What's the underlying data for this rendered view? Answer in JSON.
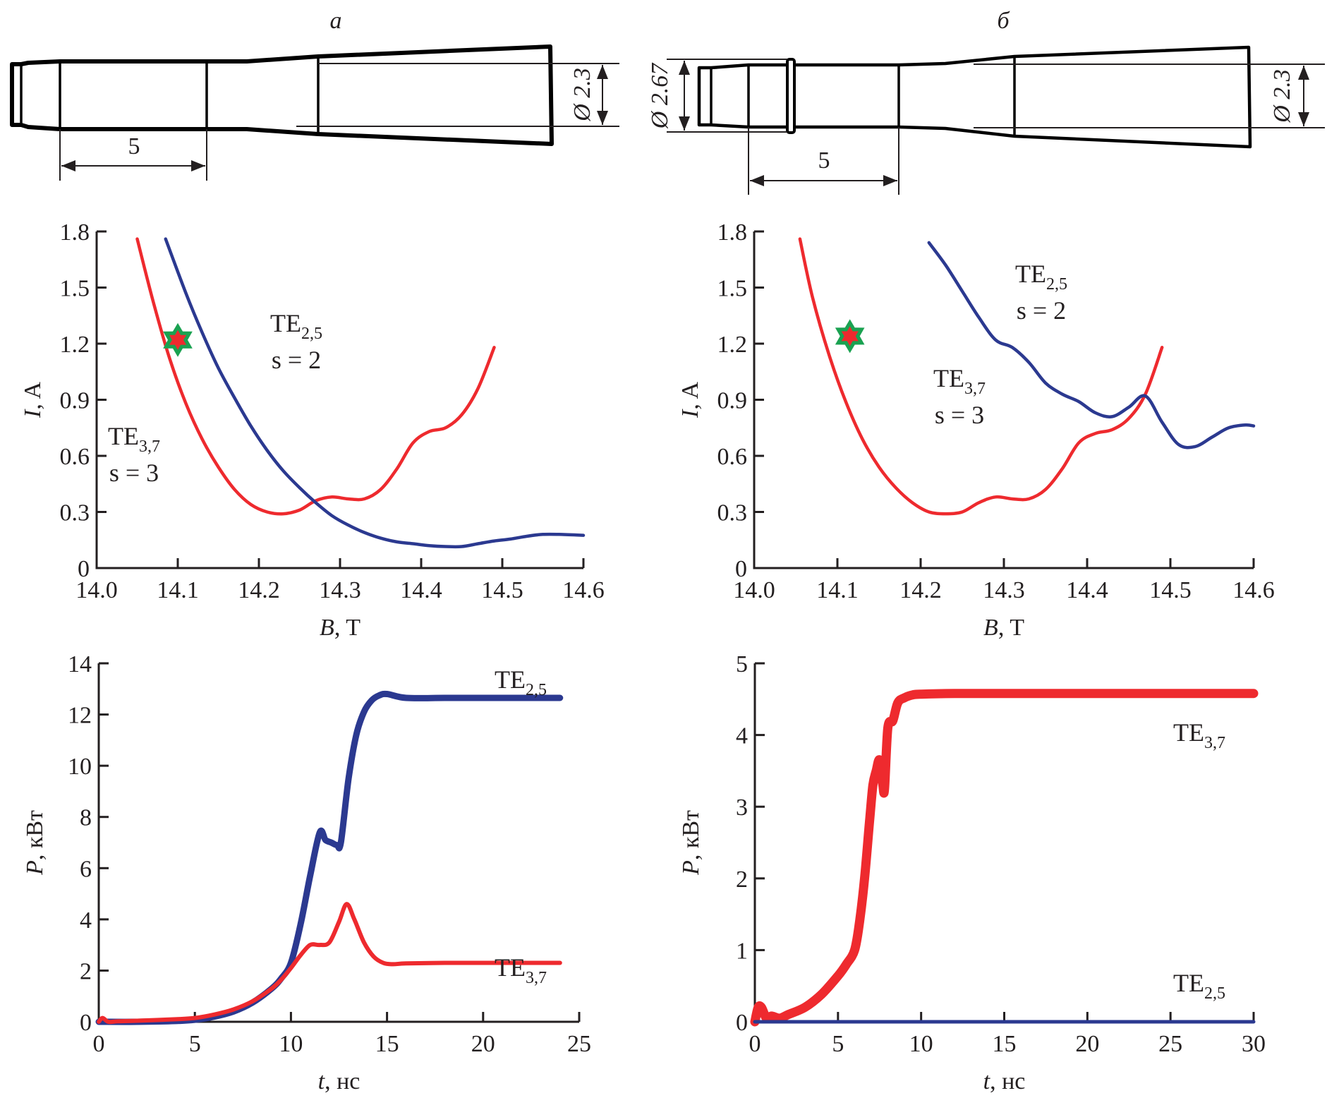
{
  "panels": {
    "a": {
      "label": "a"
    },
    "b": {
      "label": "б"
    }
  },
  "diagrams": {
    "a": {
      "dim_diameter": "Ø 2.3",
      "dim_length": "5"
    },
    "b": {
      "dim_diameter_left": "Ø 2.67",
      "dim_diameter_right": "Ø 2.3",
      "dim_length": "5"
    }
  },
  "colors": {
    "red": "#ee2a2e",
    "blue": "#2b3990",
    "star_outer": "#1aa251",
    "star_inner": "#ee2a2e"
  },
  "chart_data": [
    {
      "id": "a-start",
      "type": "line",
      "title": "",
      "xlabel": "B, T",
      "ylabel": "I, A",
      "xlim": [
        14.0,
        14.6
      ],
      "ylim": [
        0,
        1.8
      ],
      "xticks": [
        "14.0",
        "14.1",
        "14.2",
        "14.3",
        "14.4",
        "14.5",
        "14.6"
      ],
      "yticks": [
        "0",
        "0.3",
        "0.6",
        "0.9",
        "1.2",
        "1.5",
        "1.8"
      ],
      "series": [
        {
          "name": "TE3,7 s=3",
          "color": "red",
          "x": [
            14.05,
            14.07,
            14.09,
            14.11,
            14.13,
            14.15,
            14.17,
            14.19,
            14.21,
            14.23,
            14.25,
            14.27,
            14.29,
            14.31,
            14.33,
            14.35,
            14.37,
            14.39,
            14.41,
            14.43,
            14.45,
            14.47,
            14.49
          ],
          "y": [
            1.76,
            1.42,
            1.12,
            0.88,
            0.69,
            0.54,
            0.42,
            0.34,
            0.3,
            0.29,
            0.31,
            0.36,
            0.38,
            0.37,
            0.37,
            0.42,
            0.53,
            0.67,
            0.73,
            0.75,
            0.82,
            0.96,
            1.18
          ]
        },
        {
          "name": "TE2,5 s=2",
          "color": "blue",
          "x": [
            14.085,
            14.11,
            14.13,
            14.15,
            14.17,
            14.19,
            14.21,
            14.23,
            14.25,
            14.27,
            14.29,
            14.31,
            14.33,
            14.35,
            14.37,
            14.39,
            14.41,
            14.43,
            14.45,
            14.47,
            14.49,
            14.51,
            14.53,
            14.55,
            14.57,
            14.6
          ],
          "y": [
            1.76,
            1.47,
            1.26,
            1.07,
            0.91,
            0.76,
            0.63,
            0.52,
            0.43,
            0.35,
            0.28,
            0.23,
            0.19,
            0.16,
            0.14,
            0.13,
            0.12,
            0.115,
            0.115,
            0.13,
            0.145,
            0.155,
            0.17,
            0.18,
            0.18,
            0.175
          ]
        }
      ],
      "annotations": [
        {
          "text": "TE",
          "sub": "2,5",
          "line2": "s = 2"
        },
        {
          "text": "TE",
          "sub": "3,7",
          "line2": "s = 3"
        }
      ],
      "marker": {
        "shape": "star",
        "x": 14.1,
        "y": 1.22
      }
    },
    {
      "id": "b-start",
      "type": "line",
      "title": "",
      "xlabel": "B, T",
      "ylabel": "I, A",
      "xlim": [
        14.0,
        14.6
      ],
      "ylim": [
        0,
        1.8
      ],
      "xticks": [
        "14.0",
        "14.1",
        "14.2",
        "14.3",
        "14.4",
        "14.5",
        "14.6"
      ],
      "yticks": [
        "0",
        "0.3",
        "0.6",
        "0.9",
        "1.2",
        "1.5",
        "1.8"
      ],
      "series": [
        {
          "name": "TE3,7 s=3",
          "color": "red",
          "x": [
            14.055,
            14.07,
            14.09,
            14.11,
            14.13,
            14.15,
            14.17,
            14.19,
            14.21,
            14.23,
            14.25,
            14.27,
            14.29,
            14.31,
            14.33,
            14.35,
            14.37,
            14.39,
            14.41,
            14.43,
            14.45,
            14.47,
            14.49
          ],
          "y": [
            1.76,
            1.45,
            1.14,
            0.89,
            0.69,
            0.54,
            0.43,
            0.35,
            0.3,
            0.29,
            0.3,
            0.35,
            0.38,
            0.37,
            0.37,
            0.42,
            0.53,
            0.67,
            0.72,
            0.74,
            0.8,
            0.93,
            1.18
          ]
        },
        {
          "name": "TE2,5 s=2",
          "color": "blue",
          "x": [
            14.21,
            14.23,
            14.25,
            14.27,
            14.29,
            14.31,
            14.33,
            14.35,
            14.37,
            14.39,
            14.41,
            14.43,
            14.45,
            14.47,
            14.49,
            14.51,
            14.53,
            14.55,
            14.57,
            14.59,
            14.6
          ],
          "y": [
            1.74,
            1.62,
            1.48,
            1.34,
            1.22,
            1.18,
            1.1,
            0.99,
            0.93,
            0.89,
            0.83,
            0.81,
            0.86,
            0.92,
            0.78,
            0.66,
            0.65,
            0.7,
            0.75,
            0.765,
            0.76
          ]
        }
      ],
      "annotations": [
        {
          "text": "TE",
          "sub": "2,5",
          "line2": "s = 2"
        },
        {
          "text": "TE",
          "sub": "3,7",
          "line2": "s = 3"
        }
      ],
      "marker": {
        "shape": "star",
        "x": 14.115,
        "y": 1.24
      }
    },
    {
      "id": "a-power",
      "type": "line",
      "title": "",
      "xlabel": "t, нс",
      "ylabel": "P, кВт",
      "xlim": [
        0,
        25
      ],
      "ylim": [
        0,
        14
      ],
      "xticks": [
        "0",
        "5",
        "10",
        "15",
        "20",
        "25"
      ],
      "yticks": [
        "0",
        "2",
        "4",
        "6",
        "8",
        "10",
        "12",
        "14"
      ],
      "series": [
        {
          "name": "TE2,5",
          "color": "blue",
          "x": [
            0,
            2,
            4,
            5,
            6,
            7,
            8,
            9,
            9.5,
            10,
            10.5,
            11,
            11.5,
            11.8,
            12.1,
            12.4,
            12.6,
            13,
            13.4,
            13.8,
            14.2,
            14.6,
            15,
            16,
            18,
            20,
            22,
            24
          ],
          "y": [
            0,
            0,
            0.03,
            0.08,
            0.2,
            0.4,
            0.75,
            1.3,
            1.7,
            2.3,
            3.8,
            5.7,
            7.4,
            7.1,
            7.0,
            6.9,
            7.0,
            9.5,
            11.2,
            12.1,
            12.55,
            12.75,
            12.8,
            12.65,
            12.65,
            12.65,
            12.65,
            12.65
          ]
        },
        {
          "name": "TE3,7",
          "color": "red",
          "x": [
            0,
            0.2,
            0.5,
            1,
            2,
            4,
            5,
            6,
            7,
            8,
            9,
            9.5,
            10,
            10.5,
            11,
            11.5,
            12,
            12.5,
            12.9,
            13.3,
            13.8,
            14.3,
            14.8,
            15.3,
            16,
            18,
            20,
            22,
            24
          ],
          "y": [
            0,
            0.15,
            0,
            0.02,
            0.04,
            0.1,
            0.15,
            0.28,
            0.48,
            0.8,
            1.3,
            1.65,
            2.1,
            2.6,
            3.0,
            3.0,
            3.1,
            3.9,
            4.6,
            4.0,
            3.1,
            2.55,
            2.3,
            2.25,
            2.28,
            2.3,
            2.3,
            2.3,
            2.3
          ]
        }
      ],
      "annotations": [
        {
          "text": "TE",
          "sub": "2,5"
        },
        {
          "text": "TE",
          "sub": "3,7"
        }
      ]
    },
    {
      "id": "b-power",
      "type": "line",
      "title": "",
      "xlabel": "t, нс",
      "ylabel": "P, кВт",
      "xlim": [
        0,
        30
      ],
      "ylim": [
        0,
        5
      ],
      "xticks": [
        "0",
        "5",
        "10",
        "15",
        "20",
        "25",
        "30"
      ],
      "yticks": [
        "0",
        "1",
        "2",
        "3",
        "4",
        "5"
      ],
      "series": [
        {
          "name": "TE3,7",
          "color": "red",
          "x": [
            0,
            0.2,
            0.4,
            0.7,
            1,
            1.5,
            2,
            3,
            4,
            5,
            5.5,
            6,
            6.3,
            6.6,
            6.9,
            7.1,
            7.3,
            7.5,
            7.7,
            7.8,
            8,
            8.3,
            8.6,
            9,
            9.5,
            10,
            12,
            15,
            20,
            25,
            30
          ],
          "y": [
            0,
            0.2,
            0.2,
            0.05,
            0.08,
            0.05,
            0.1,
            0.2,
            0.38,
            0.64,
            0.8,
            1.0,
            1.4,
            2.0,
            2.8,
            3.3,
            3.5,
            3.65,
            3.3,
            3.25,
            4.1,
            4.2,
            4.45,
            4.52,
            4.56,
            4.57,
            4.58,
            4.58,
            4.58,
            4.58,
            4.58
          ]
        },
        {
          "name": "TE2,5",
          "color": "blue",
          "x": [
            0,
            30
          ],
          "y": [
            0,
            0
          ]
        }
      ],
      "annotations": [
        {
          "text": "TE",
          "sub": "3,7"
        },
        {
          "text": "TE",
          "sub": "2,5"
        }
      ]
    }
  ]
}
